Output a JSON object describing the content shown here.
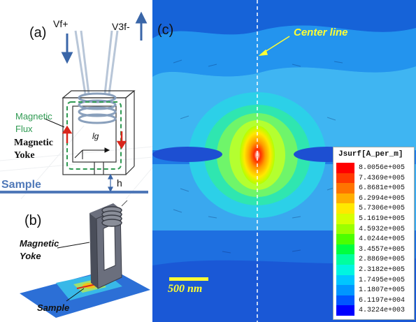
{
  "panel_a": {
    "letter": "(a)",
    "vf_label": "Vf+",
    "v3f_label": "V3f-",
    "flux_label_1": "Magnetic",
    "flux_label_2": "Flux",
    "yoke_label_1": "Magnetic",
    "yoke_label_2": "Yoke",
    "lg_label": "lg",
    "sample_label": "Sample",
    "h_label": "h",
    "colors": {
      "sample_bar": "#4f78b8",
      "flux": "#2f9a52",
      "arrow": "#3a66a8",
      "red_arrow": "#d9261c"
    }
  },
  "panel_b": {
    "letter": "(b)",
    "yoke_label_1": "Magnetic",
    "yoke_label_2": "Yoke",
    "sample_label": "Sample"
  },
  "panel_c": {
    "letter": "(c)",
    "center_line_label": "Center line",
    "scale_label": "500 nm",
    "legend_title": "Jsurf[A_per_m]",
    "legend": [
      {
        "value": "8.0056e+005",
        "color": "#ff0000"
      },
      {
        "value": "7.4369e+005",
        "color": "#ff3a00"
      },
      {
        "value": "6.8681e+005",
        "color": "#ff7400"
      },
      {
        "value": "6.2994e+005",
        "color": "#ffae00"
      },
      {
        "value": "5.7306e+005",
        "color": "#ffe800"
      },
      {
        "value": "5.1619e+005",
        "color": "#d6ff00"
      },
      {
        "value": "4.5932e+005",
        "color": "#9cff00"
      },
      {
        "value": "4.0244e+005",
        "color": "#4cff00"
      },
      {
        "value": "3.4557e+005",
        "color": "#00ff40"
      },
      {
        "value": "2.8869e+005",
        "color": "#00ff9e"
      },
      {
        "value": "2.3182e+005",
        "color": "#00f5e0"
      },
      {
        "value": "1.7495e+005",
        "color": "#00c6ff"
      },
      {
        "value": "1.1807e+005",
        "color": "#0096ff"
      },
      {
        "value": "6.1197e+004",
        "color": "#0056ff"
      },
      {
        "value": "4.3224e+003",
        "color": "#0000ff"
      }
    ]
  }
}
